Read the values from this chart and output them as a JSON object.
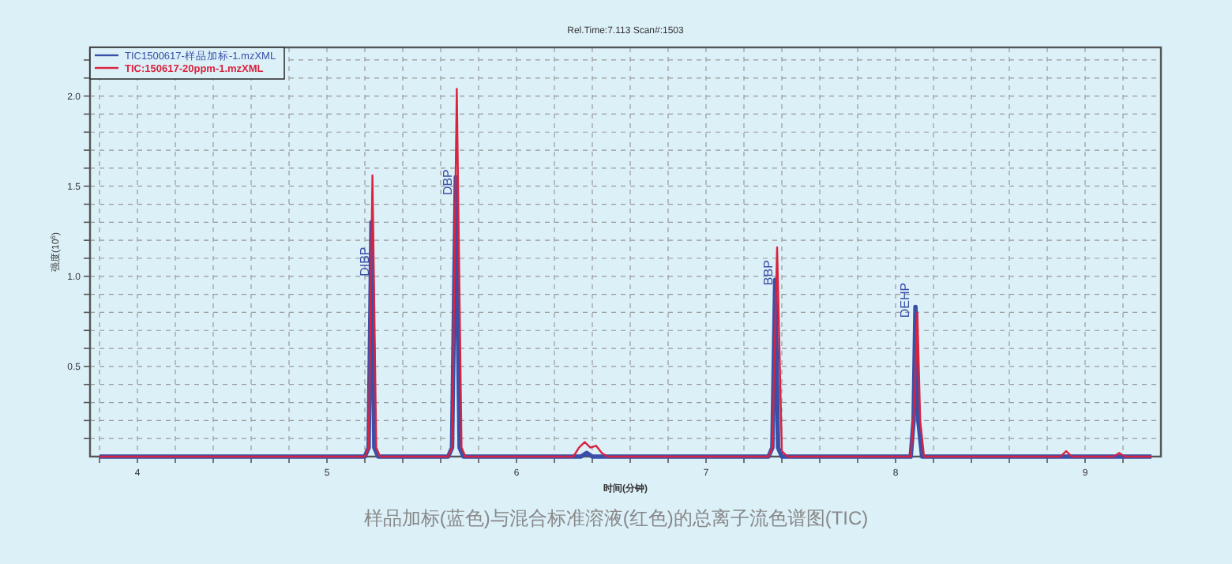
{
  "chart_data": {
    "type": "line",
    "title": "Rel.Time:7.113 Scan#:1503",
    "xlabel": "时间(分钟)",
    "ylabel": "强度(10$^{6}$)",
    "xlim": [
      3.75,
      9.4
    ],
    "xticks": [
      {
        "value": 3.8,
        "label": null
      },
      {
        "value": 4,
        "label": "4"
      },
      {
        "value": 4.2,
        "label": null
      },
      {
        "value": 4.4,
        "label": null
      },
      {
        "value": 4.6,
        "label": null
      },
      {
        "value": 4.8,
        "label": null
      },
      {
        "value": 5,
        "label": "5"
      },
      {
        "value": 5.2,
        "label": null
      },
      {
        "value": 5.4,
        "label": null
      },
      {
        "value": 5.6,
        "label": null
      },
      {
        "value": 5.8,
        "label": null
      },
      {
        "value": 6,
        "label": "6"
      },
      {
        "value": 6.2,
        "label": null
      },
      {
        "value": 6.4,
        "label": null
      },
      {
        "value": 6.6,
        "label": null
      },
      {
        "value": 6.8,
        "label": null
      },
      {
        "value": 7,
        "label": "7"
      },
      {
        "value": 7.2,
        "label": null
      },
      {
        "value": 7.4,
        "label": null
      },
      {
        "value": 7.6,
        "label": null
      },
      {
        "value": 7.8,
        "label": null
      },
      {
        "value": 8,
        "label": "8"
      },
      {
        "value": 8.2,
        "label": null
      },
      {
        "value": 8.4,
        "label": null
      },
      {
        "value": 8.6,
        "label": null
      },
      {
        "value": 8.8,
        "label": null
      },
      {
        "value": 9,
        "label": "9"
      },
      {
        "value": 9.2,
        "label": null
      }
    ],
    "ylim": [
      0,
      2.27
    ],
    "yticks": [
      {
        "value": 0.1,
        "label": null
      },
      {
        "value": 0.2,
        "label": null
      },
      {
        "value": 0.3,
        "label": null
      },
      {
        "value": 0.4,
        "label": null
      },
      {
        "value": 0.5,
        "label": "0.5"
      },
      {
        "value": 0.6,
        "label": null
      },
      {
        "value": 0.7,
        "label": null
      },
      {
        "value": 0.8,
        "label": null
      },
      {
        "value": 0.9,
        "label": null
      },
      {
        "value": 1,
        "label": "1.0"
      },
      {
        "value": 1.1,
        "label": null
      },
      {
        "value": 1.2,
        "label": null
      },
      {
        "value": 1.3,
        "label": null
      },
      {
        "value": 1.4,
        "label": null
      },
      {
        "value": 1.5,
        "label": "1.5"
      },
      {
        "value": 1.6,
        "label": null
      },
      {
        "value": 1.7,
        "label": null
      },
      {
        "value": 1.8,
        "label": null
      },
      {
        "value": 1.9,
        "label": null
      },
      {
        "value": 2,
        "label": "2.0"
      },
      {
        "value": 2.1,
        "label": null
      },
      {
        "value": 2.2,
        "label": null
      }
    ],
    "grid": true,
    "legend": "top left",
    "line_style": "solid",
    "marker": "none",
    "series": [
      {
        "name": "TIC1500617-样品加标-1.mzXML",
        "color": "#3a4fa8",
        "x": [
          3.8,
          5.2,
          5.22,
          5.235,
          5.25,
          5.27,
          5.64,
          5.66,
          5.68,
          5.7,
          5.72,
          6.34,
          6.37,
          6.4,
          7.33,
          7.35,
          7.365,
          7.38,
          7.4,
          8.08,
          8.095,
          8.105,
          8.12,
          8.14,
          9.35
        ],
        "values": [
          0,
          0,
          0.05,
          1.3,
          0.05,
          0,
          0,
          0.05,
          1.55,
          0.05,
          0,
          0,
          0.02,
          0,
          0,
          0.05,
          0.98,
          0.05,
          0,
          0,
          0.2,
          0.83,
          0.2,
          0,
          0
        ]
      },
      {
        "name": "TIC:150617-20ppm-1.mzXML",
        "color": "#d9233f",
        "x": [
          3.8,
          5.2,
          5.22,
          5.24,
          5.26,
          5.28,
          5.64,
          5.66,
          5.685,
          5.71,
          5.73,
          6.3,
          6.33,
          6.36,
          6.39,
          6.42,
          6.45,
          6.48,
          7.33,
          7.35,
          7.375,
          7.4,
          7.43,
          8.08,
          8.1,
          8.115,
          8.13,
          8.15,
          8.87,
          8.9,
          8.93,
          9.15,
          9.18,
          9.21,
          9.35
        ],
        "values": [
          0,
          0,
          0.05,
          1.56,
          0.05,
          0,
          0,
          0.05,
          2.04,
          0.05,
          0,
          0,
          0.05,
          0.08,
          0.05,
          0.06,
          0.02,
          0,
          0,
          0.05,
          1.16,
          0.03,
          0,
          0,
          0.3,
          0.8,
          0.2,
          0,
          0,
          0.03,
          0,
          0,
          0.02,
          0,
          0
        ]
      }
    ],
    "annotations": [
      {
        "text": "DIBP",
        "x": 5.22,
        "y": 1.0
      },
      {
        "text": "DBP",
        "x": 5.66,
        "y": 1.45
      },
      {
        "text": "BBP",
        "x": 7.35,
        "y": 0.95
      },
      {
        "text": "DEHP",
        "x": 8.07,
        "y": 0.77
      },
      "样品加标(蓝色)与混合标准溶液(红色)的总离子流色谱图(TIC)"
    ]
  }
}
